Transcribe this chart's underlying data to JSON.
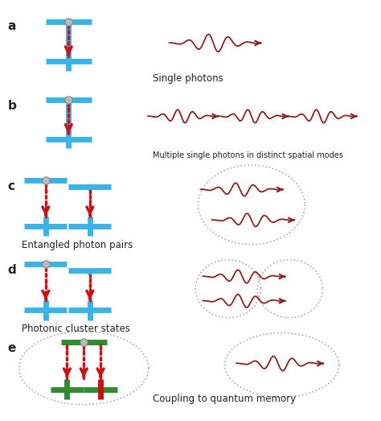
{
  "background_color": "#ffffff",
  "blue": "#3ab4e8",
  "dark_red": "#8b2020",
  "green": "#2e8b2e",
  "red_arrow": "#cc1111",
  "gray": "#aaaaaa",
  "dot_gray": "#999999",
  "text_color": "#222222",
  "sections": [
    "a",
    "b",
    "c",
    "d",
    "e"
  ],
  "labels": [
    "Single photons",
    "Multiple single photons in distinct spatial modes",
    "Entangled photon pairs",
    "Photonic cluster states",
    "Coupling to quantum memory"
  ]
}
